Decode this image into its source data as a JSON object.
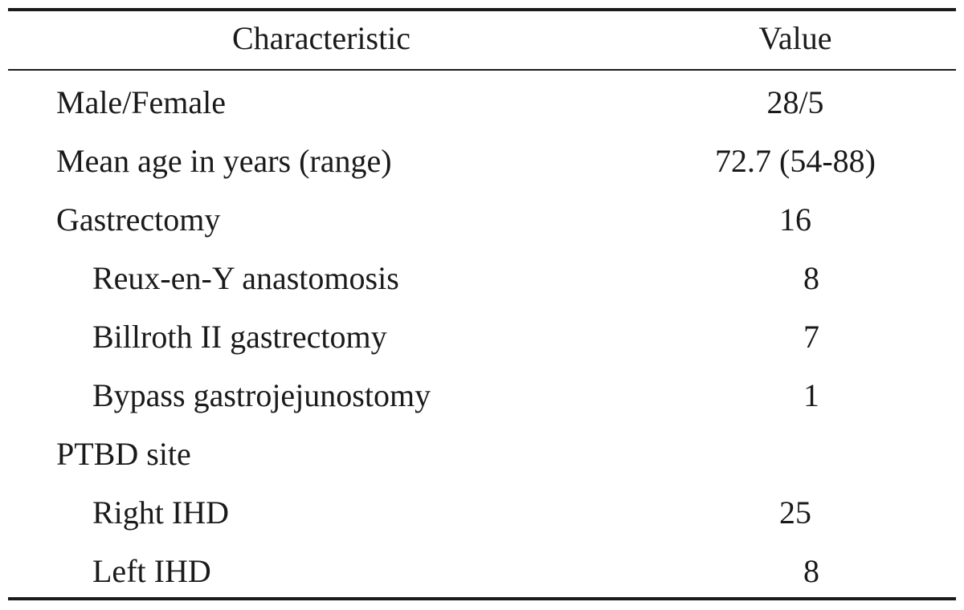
{
  "table": {
    "headers": {
      "characteristic": "Characteristic",
      "value": "Value"
    },
    "rows": [
      {
        "label": "Male/Female",
        "value": "28/5",
        "indent": false
      },
      {
        "label": "Mean age in years (range)",
        "value": "72.7 (54-88)",
        "indent": false
      },
      {
        "label": "Gastrectomy",
        "value": "16",
        "indent": false
      },
      {
        "label": "Reux-en-Y anastomosis",
        "value": "8",
        "indent": true
      },
      {
        "label": "Billroth II gastrectomy",
        "value": "7",
        "indent": true
      },
      {
        "label": "Bypass gastrojejunostomy",
        "value": "1",
        "indent": true
      },
      {
        "label": "PTBD site",
        "value": "",
        "indent": false
      },
      {
        "label": "Right IHD",
        "value": "25",
        "indent": true
      },
      {
        "label": "Left IHD",
        "value": "8",
        "indent": true
      }
    ]
  }
}
